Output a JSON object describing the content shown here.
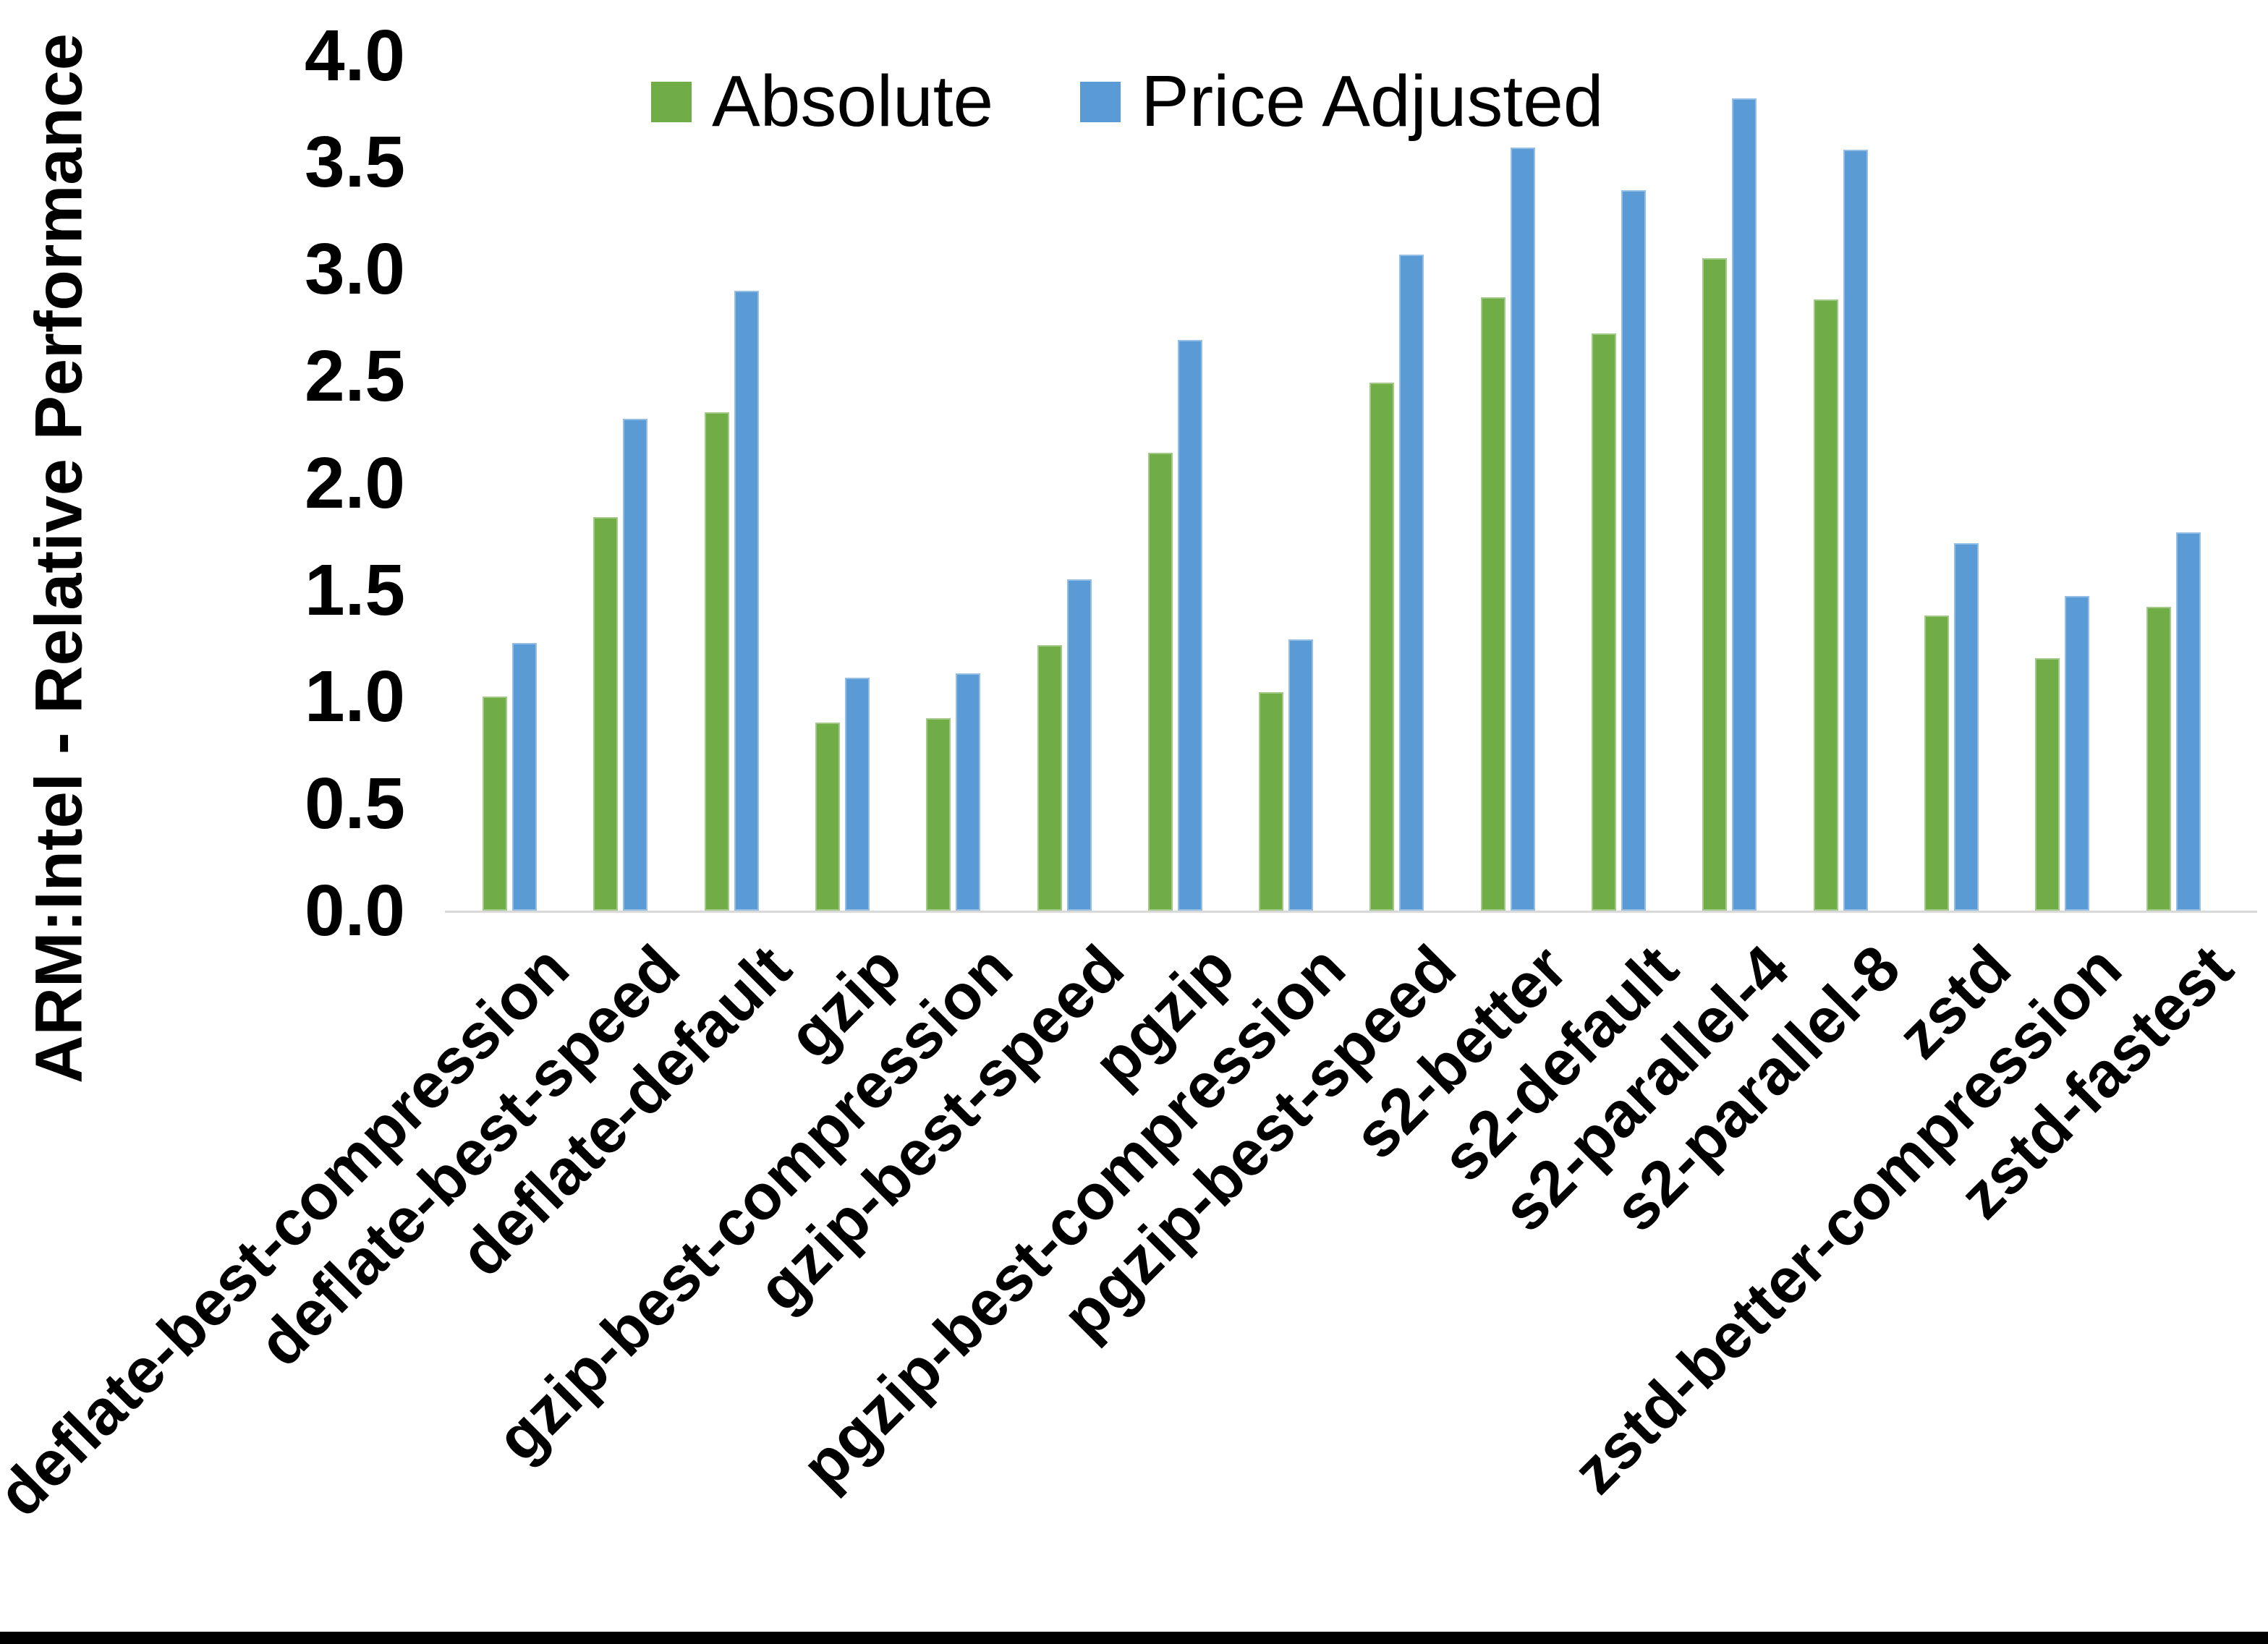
{
  "chart_data": {
    "type": "bar",
    "title": "",
    "xlabel": "",
    "ylabel": "ARM:Intel - Relative Performance",
    "ylim": [
      0.0,
      4.0
    ],
    "ytick_labels": [
      "0.0",
      "0.5",
      "1.0",
      "1.5",
      "2.0",
      "2.5",
      "3.0",
      "3.5",
      "4.0"
    ],
    "grid": false,
    "legend_position": "top-center",
    "categories": [
      "deflate-best-compression",
      "deflate-best-speed",
      "deflate-default",
      "gzip",
      "gzip-best-compression",
      "gzip-best-speed",
      "pgzip",
      "pgzip-best-compression",
      "pgzip-best-speed",
      "s2-better",
      "s2-default",
      "s2-parallel-4",
      "s2-parallel-8",
      "zstd",
      "zstd-better-compression",
      "zstd-fastest"
    ],
    "series": [
      {
        "name": "Absolute",
        "color": "#70AD47",
        "values": [
          1.0,
          1.84,
          2.33,
          0.88,
          0.9,
          1.24,
          2.14,
          1.02,
          2.47,
          2.87,
          2.7,
          3.05,
          2.86,
          1.38,
          1.18,
          1.42
        ]
      },
      {
        "name": "Price Adjusted",
        "color": "#5B9BD5",
        "values": [
          1.25,
          2.3,
          2.9,
          1.09,
          1.11,
          1.55,
          2.67,
          1.27,
          3.07,
          3.57,
          3.37,
          3.8,
          3.56,
          1.72,
          1.47,
          1.77
        ]
      }
    ]
  },
  "page": {
    "background_color": "#FFFFFF",
    "axis_line_color": "#D9D9D9",
    "text_color": "#000000",
    "bottom_bar_color": "#000000"
  }
}
